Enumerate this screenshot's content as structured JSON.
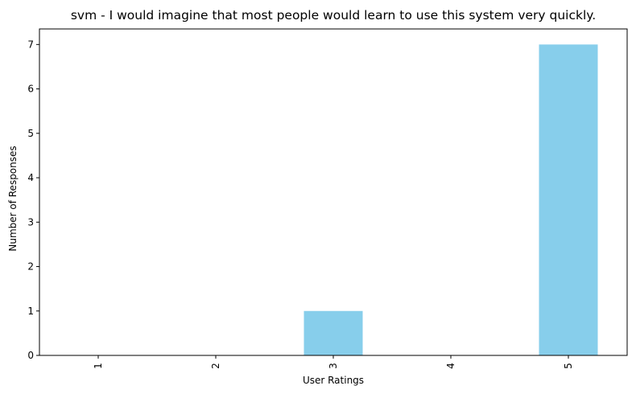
{
  "chart_data": {
    "type": "bar",
    "title": "svm - I would imagine that most people would learn to use this system very quickly.",
    "xlabel": "User Ratings",
    "ylabel": "Number of Responses",
    "categories": [
      "1",
      "2",
      "3",
      "4",
      "5"
    ],
    "values": [
      0,
      0,
      1,
      0,
      7
    ],
    "ylim": [
      0,
      7.35
    ],
    "yticks": [
      "0",
      "1",
      "2",
      "3",
      "4",
      "5",
      "6",
      "7"
    ],
    "bar_color": "#87CEEB",
    "grid": false,
    "legend": "none"
  }
}
